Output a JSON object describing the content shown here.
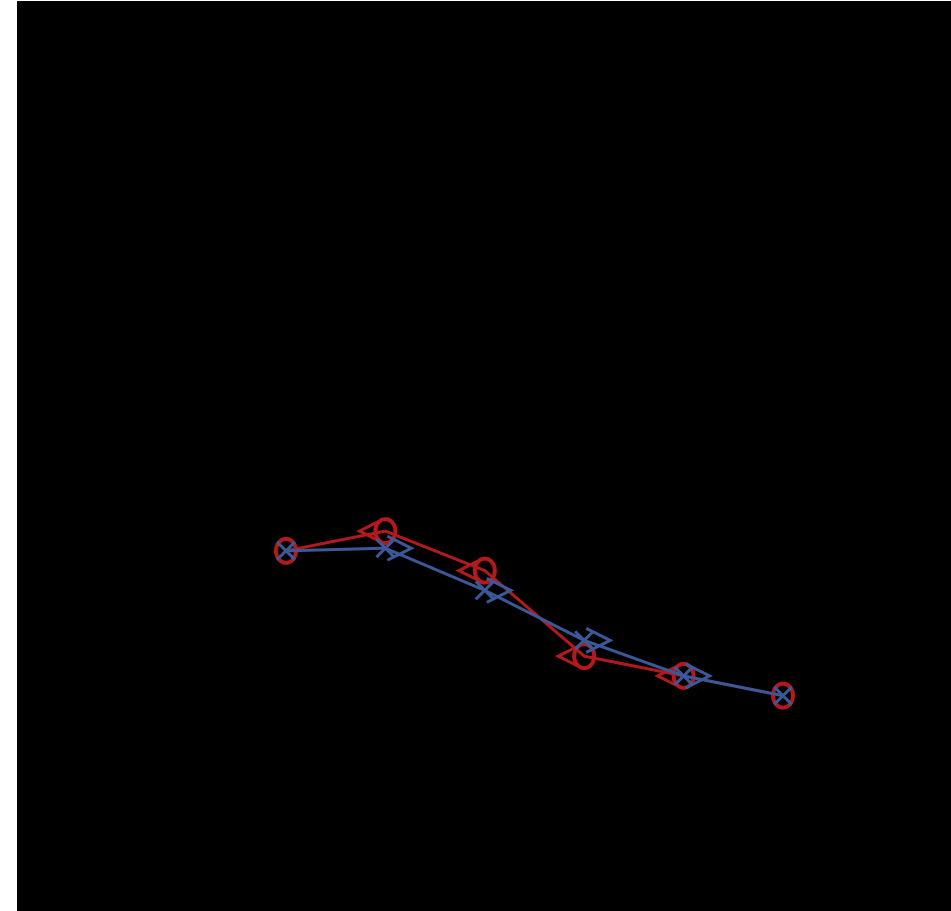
{
  "chart_data": {
    "type": "line",
    "x": [
      1,
      2,
      3,
      4,
      5,
      6
    ],
    "xlim": [
      1,
      6
    ],
    "ylim": [
      0,
      6
    ],
    "grid": false,
    "legend": "none",
    "title": "",
    "xlabel": "",
    "ylabel": "",
    "series": [
      {
        "values": [
          2.5,
          2.65,
          2.35,
          1.7,
          1.55,
          1.4
        ],
        "color": "#b5191c",
        "line_marker": "circle",
        "side_marker": "triangle-left"
      },
      {
        "values": [
          2.5,
          2.52,
          2.2,
          1.82,
          1.55,
          1.4
        ],
        "color": "#3b5999",
        "line_marker": "x",
        "side_marker": "triangle-right"
      }
    ]
  },
  "colors": {
    "background": "#000000",
    "page": "#ffffff"
  }
}
